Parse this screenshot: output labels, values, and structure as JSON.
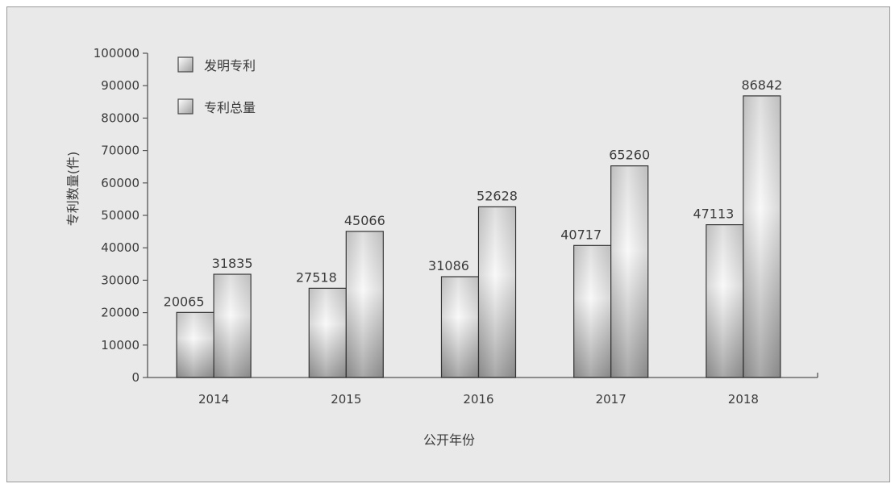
{
  "chart_data": {
    "type": "bar",
    "categories": [
      "2014",
      "2015",
      "2016",
      "2017",
      "2018"
    ],
    "series": [
      {
        "name": "发明专利",
        "values": [
          20065,
          27518,
          31086,
          40717,
          47113
        ]
      },
      {
        "name": "专利总量",
        "values": [
          31835,
          45066,
          52628,
          65260,
          86842
        ]
      }
    ],
    "title": "",
    "xlabel": "公开年份",
    "ylabel": "专利数量(件)",
    "ylim": [
      0,
      100000
    ],
    "yticks": [
      "0",
      "10000",
      "20000",
      "30000",
      "40000",
      "50000",
      "60000",
      "70000",
      "80000",
      "90000",
      "100000"
    ],
    "data_labels": [
      [
        "20065",
        "27518",
        "31086",
        "40717",
        "47113"
      ],
      [
        "31835",
        "45066",
        "52628",
        "65260",
        "86842"
      ]
    ],
    "grid": false,
    "legend_position": "top-left",
    "colors": {
      "frame_background": "#e9e9e9",
      "frame_border": "#9a9a9a",
      "axis": "#555555",
      "bar_light": "#fafafa",
      "bar_dark": "#8a8a8a"
    }
  }
}
